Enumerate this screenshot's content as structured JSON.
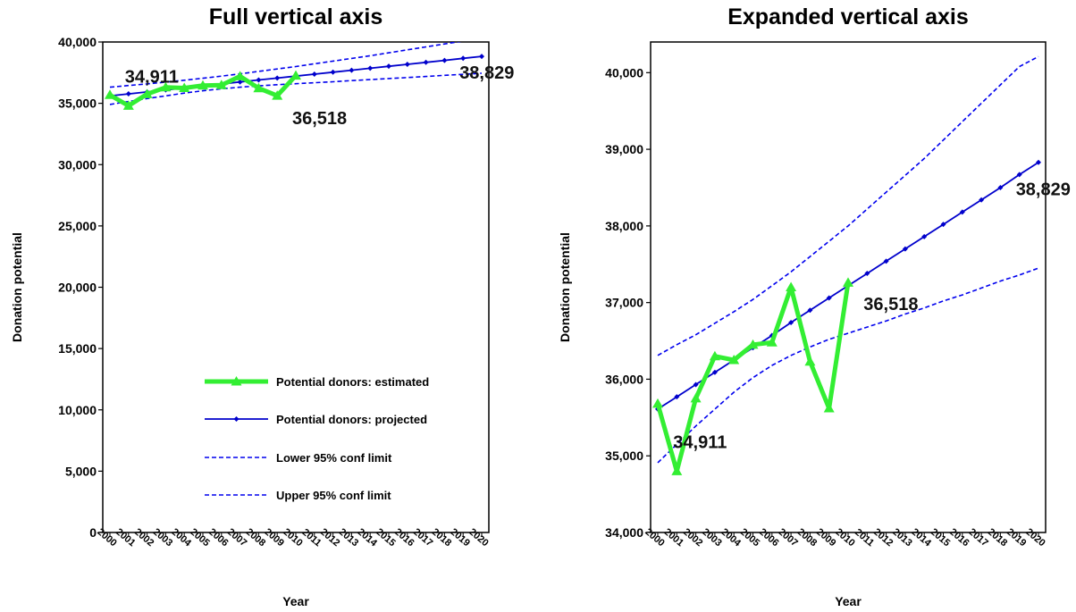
{
  "chart_data": [
    {
      "type": "line",
      "title": "Full vertical axis",
      "xlabel": "Year",
      "ylabel": "Donation potential",
      "ylim": [
        0,
        40000
      ],
      "yticks": [
        "0",
        "5,000",
        "10,000",
        "15,000",
        "20,000",
        "25,000",
        "30,000",
        "35,000",
        "40,000"
      ],
      "categories": [
        "2000",
        "2001",
        "2002",
        "2003",
        "2004",
        "2005",
        "2006",
        "2007",
        "2008",
        "2009",
        "2010",
        "2011",
        "2012",
        "2013",
        "2014",
        "2015",
        "2016",
        "2017",
        "2018",
        "2019",
        "2020"
      ],
      "grid": false,
      "legend_placement": "bottom-right",
      "series": [
        {
          "name": "Potential donors: estimated",
          "color": "#33ee33",
          "style": "thick-solid-triangle",
          "values": [
            35680,
            34800,
            35750,
            36300,
            36250,
            36450,
            36480,
            37200,
            36230,
            35620,
            37260,
            null,
            null,
            null,
            null,
            null,
            null,
            null,
            null,
            null,
            null
          ]
        },
        {
          "name": "Potential donors: projected",
          "color": "#0000cc",
          "style": "solid-diamond",
          "values": [
            35610,
            35770,
            35930,
            36090,
            36250,
            36410,
            36570,
            36740,
            36900,
            37060,
            37220,
            37380,
            37540,
            37700,
            37860,
            38020,
            38180,
            38340,
            38500,
            38670,
            38829
          ]
        },
        {
          "name": "Lower 95% conf limit",
          "color": "#0000ee",
          "style": "dashed",
          "values": [
            34910,
            35150,
            35390,
            35610,
            35830,
            36020,
            36180,
            36310,
            36420,
            36520,
            36600,
            36680,
            36760,
            36850,
            36930,
            37020,
            37100,
            37190,
            37280,
            37360,
            37450
          ]
        },
        {
          "name": "Upper 95% conf limit",
          "color": "#0000ee",
          "style": "dashed",
          "values": [
            36310,
            36450,
            36580,
            36730,
            36880,
            37040,
            37220,
            37400,
            37600,
            37800,
            38000,
            38220,
            38440,
            38660,
            38880,
            39120,
            39360,
            39600,
            39840,
            40080,
            40210
          ]
        }
      ],
      "annotations": [
        {
          "text": "34,911",
          "x": "2001",
          "y": 36700
        },
        {
          "text": "36,518",
          "x": "2010",
          "y": 33300
        },
        {
          "text": "38,829",
          "x": "2019",
          "y": 37000
        }
      ]
    },
    {
      "type": "line",
      "title": "Expanded vertical axis",
      "xlabel": "Year",
      "ylabel": "Donation potential",
      "ylim": [
        34000,
        40400
      ],
      "yticks": [
        "34,000",
        "35,000",
        "36,000",
        "37,000",
        "38,000",
        "39,000",
        "40,000"
      ],
      "categories": [
        "2000",
        "2001",
        "2002",
        "2003",
        "2004",
        "2005",
        "2006",
        "2007",
        "2008",
        "2009",
        "2010",
        "2011",
        "2012",
        "2013",
        "2014",
        "2015",
        "2016",
        "2017",
        "2018",
        "2019",
        "2020"
      ],
      "grid": false,
      "annotations": [
        {
          "text": "34,911",
          "x": "2001",
          "y": 35100
        },
        {
          "text": "36,518",
          "x": "2011",
          "y": 36900
        },
        {
          "text": "38,829",
          "x": "2019",
          "y": 38400
        }
      ]
    }
  ]
}
